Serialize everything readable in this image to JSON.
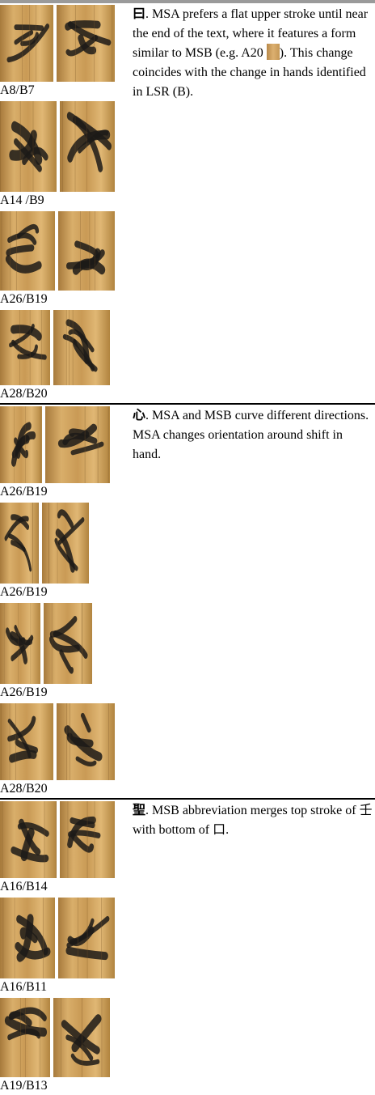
{
  "sections": [
    {
      "glyph": "曰",
      "text": ". MSA prefers a flat upper stroke until near the end of the text, where it features a form similar to MSB (e.g. A20 ",
      "text_after": "). This change coincides with the change in hands identified in LSR (B).",
      "rows": [
        {
          "label": "A8/B7"
        },
        {
          "label": "A14 /B9"
        },
        {
          "label": "A26/B19"
        },
        {
          "label": "A28/B20"
        }
      ]
    },
    {
      "glyph": "心",
      "text": ". MSA and MSB curve different directions. MSA changes orientation around shift in hand.",
      "rows": [
        {
          "label": "A26/B19"
        },
        {
          "label": "A26/B19"
        },
        {
          "label": "A26/B19"
        },
        {
          "label": "A28/B20"
        }
      ]
    },
    {
      "glyph": "聖",
      "text": ". MSB abbreviation merges top stroke of 壬 with bottom of 口.",
      "rows": [
        {
          "label": "A16/B14"
        },
        {
          "label": "A16/B11"
        },
        {
          "label": "A19/B13"
        }
      ]
    }
  ]
}
